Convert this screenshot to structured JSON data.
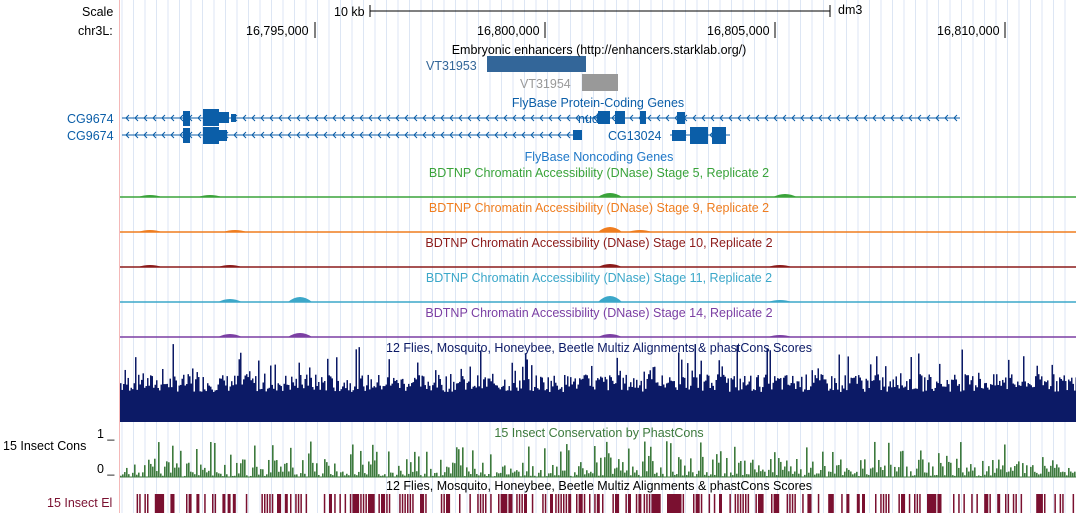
{
  "ruler": {
    "scale_label": "Scale",
    "chrom_label": "chr3L:",
    "scale_bar_text": "10 kb",
    "assembly": "dm3",
    "positions": [
      "16,795,000",
      "16,800,000",
      "16,805,000",
      "16,810,000"
    ]
  },
  "tracks": {
    "enhancers": {
      "title": "Embryonic enhancers (http://enhancers.starklab.org/)",
      "items": [
        "VT31953",
        "VT31954"
      ],
      "colors": {
        "VT31953": "#336699",
        "VT31954": "#999999"
      }
    },
    "flybase_coding": {
      "title": "FlyBase Protein-Coding Genes",
      "genes": [
        "CG9674",
        "CG9674",
        "nudC",
        "CG13024"
      ],
      "color": "#0b5ea8"
    },
    "flybase_noncoding": {
      "title": "FlyBase Noncoding Genes",
      "color": "#1f78c8"
    },
    "dnase": [
      {
        "title": "BDTNP Chromatin Accessibility (DNase) Stage 5, Replicate 2",
        "color": "#3aa33a"
      },
      {
        "title": "BDTNP Chromatin Accessibility (DNase) Stage 9, Replicate 2",
        "color": "#ef7d1f"
      },
      {
        "title": "BDTNP Chromatin Accessibility (DNase) Stage 10, Replicate 2",
        "color": "#8b1a1a"
      },
      {
        "title": "BDTNP Chromatin Accessibility (DNase) Stage 11, Replicate 2",
        "color": "#3ba7c9"
      },
      {
        "title": "BDTNP Chromatin Accessibility (DNase) Stage 14, Replicate 2",
        "color": "#7b3fa3"
      }
    ],
    "multiz": {
      "title": "12 Flies, Mosquito, Honeybee, Beetle Multiz Alignments & phastCons Scores",
      "color": "#0c1a66"
    },
    "cons": {
      "side_label": "15 Insect Cons",
      "title": "15 Insect Conservation by PhastCons",
      "axis_max": "1 _",
      "axis_min": "0 _",
      "color": "#3d7a3d"
    },
    "elements": {
      "side_label": "15 Insect El",
      "title": "12 Flies, Mosquito, Honeybee, Beetle Multiz Alignments & phastCons Scores",
      "color": "#7a1030"
    }
  }
}
